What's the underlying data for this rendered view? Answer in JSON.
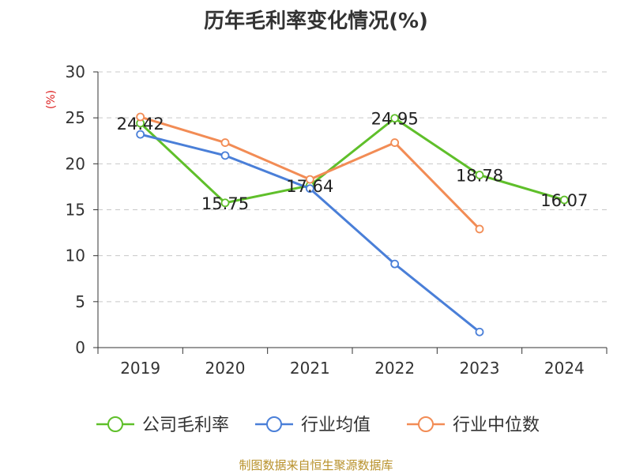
{
  "chart_data": {
    "type": "line",
    "title": "历年毛利率变化情况(%)",
    "ylabel": "(%)",
    "categories": [
      "2019",
      "2020",
      "2021",
      "2022",
      "2023",
      "2024"
    ],
    "ylim": [
      0,
      30
    ],
    "yticks": [
      0,
      5,
      10,
      15,
      20,
      25,
      30
    ],
    "grid": true,
    "legend_position": "bottom",
    "series": [
      {
        "name": "公司毛利率",
        "color": "#5fbf2a",
        "values": [
          24.42,
          15.75,
          17.64,
          24.95,
          18.78,
          16.07
        ],
        "labels": [
          "24.42",
          "15.75",
          "17.64",
          "24.95",
          "18.78",
          "16.07"
        ]
      },
      {
        "name": "行业均值",
        "color": "#4a7fd8",
        "values": [
          23.2,
          20.9,
          17.3,
          9.1,
          1.7,
          null
        ]
      },
      {
        "name": "行业中位数",
        "color": "#f28c55",
        "values": [
          25.1,
          22.3,
          18.3,
          22.3,
          12.9,
          null
        ]
      }
    ]
  },
  "source": "制图数据来自恒生聚源数据库"
}
